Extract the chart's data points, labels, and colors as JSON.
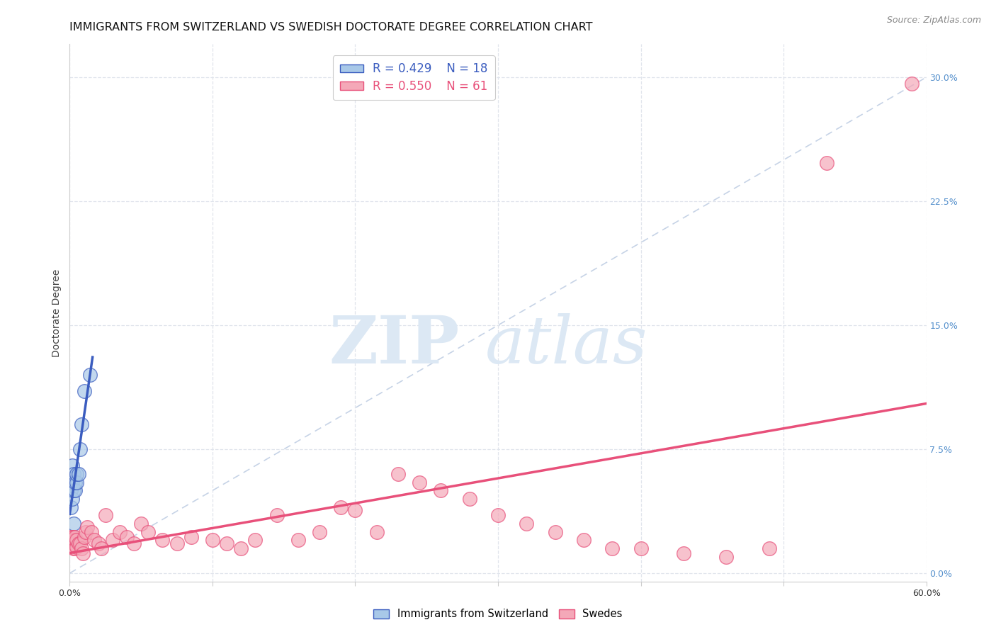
{
  "title": "IMMIGRANTS FROM SWITZERLAND VS SWEDISH DOCTORATE DEGREE CORRELATION CHART",
  "source": "Source: ZipAtlas.com",
  "ylabel": "Doctorate Degree",
  "xlim": [
    0.0,
    0.6
  ],
  "ylim": [
    -0.005,
    0.32
  ],
  "ytick_labels_right": [
    "0.0%",
    "7.5%",
    "15.0%",
    "22.5%",
    "30.0%"
  ],
  "ytick_positions_right": [
    0.0,
    0.075,
    0.15,
    0.225,
    0.3
  ],
  "legend_r1": "R = 0.429",
  "legend_n1": "N = 18",
  "legend_r2": "R = 0.550",
  "legend_n2": "N = 61",
  "color_swiss": "#a8c8e8",
  "color_swedes": "#f4a8b8",
  "color_line_swiss": "#3a5cbf",
  "color_line_swedes": "#e8507a",
  "color_dashed": "#b8c8e0",
  "background_color": "#ffffff",
  "grid_color": "#e0e4ec",
  "swiss_x": [
    0.001,
    0.001,
    0.001,
    0.002,
    0.002,
    0.002,
    0.003,
    0.003,
    0.003,
    0.004,
    0.004,
    0.005,
    0.005,
    0.006,
    0.007,
    0.008,
    0.01,
    0.014
  ],
  "swiss_y": [
    0.04,
    0.05,
    0.055,
    0.045,
    0.055,
    0.065,
    0.05,
    0.06,
    0.03,
    0.05,
    0.055,
    0.055,
    0.06,
    0.06,
    0.075,
    0.09,
    0.11,
    0.12
  ],
  "swedes_x": [
    0.001,
    0.001,
    0.001,
    0.002,
    0.002,
    0.002,
    0.003,
    0.003,
    0.003,
    0.003,
    0.004,
    0.004,
    0.004,
    0.005,
    0.005,
    0.006,
    0.007,
    0.008,
    0.009,
    0.01,
    0.011,
    0.012,
    0.015,
    0.017,
    0.02,
    0.022,
    0.025,
    0.03,
    0.035,
    0.04,
    0.045,
    0.05,
    0.055,
    0.065,
    0.075,
    0.085,
    0.1,
    0.11,
    0.12,
    0.13,
    0.145,
    0.16,
    0.175,
    0.19,
    0.2,
    0.215,
    0.23,
    0.245,
    0.26,
    0.28,
    0.3,
    0.32,
    0.34,
    0.36,
    0.38,
    0.4,
    0.43,
    0.46,
    0.49,
    0.53,
    0.59
  ],
  "swedes_y": [
    0.018,
    0.02,
    0.022,
    0.018,
    0.02,
    0.022,
    0.015,
    0.02,
    0.022,
    0.018,
    0.015,
    0.02,
    0.022,
    0.016,
    0.02,
    0.018,
    0.018,
    0.015,
    0.012,
    0.022,
    0.025,
    0.028,
    0.025,
    0.02,
    0.018,
    0.015,
    0.035,
    0.02,
    0.025,
    0.022,
    0.018,
    0.03,
    0.025,
    0.02,
    0.018,
    0.022,
    0.02,
    0.018,
    0.015,
    0.02,
    0.035,
    0.02,
    0.025,
    0.04,
    0.038,
    0.025,
    0.06,
    0.055,
    0.05,
    0.045,
    0.035,
    0.03,
    0.025,
    0.02,
    0.015,
    0.015,
    0.012,
    0.01,
    0.015,
    0.248,
    0.296
  ],
  "title_fontsize": 11.5,
  "axis_label_fontsize": 10,
  "tick_fontsize": 9,
  "legend_fontsize": 12,
  "source_fontsize": 9
}
